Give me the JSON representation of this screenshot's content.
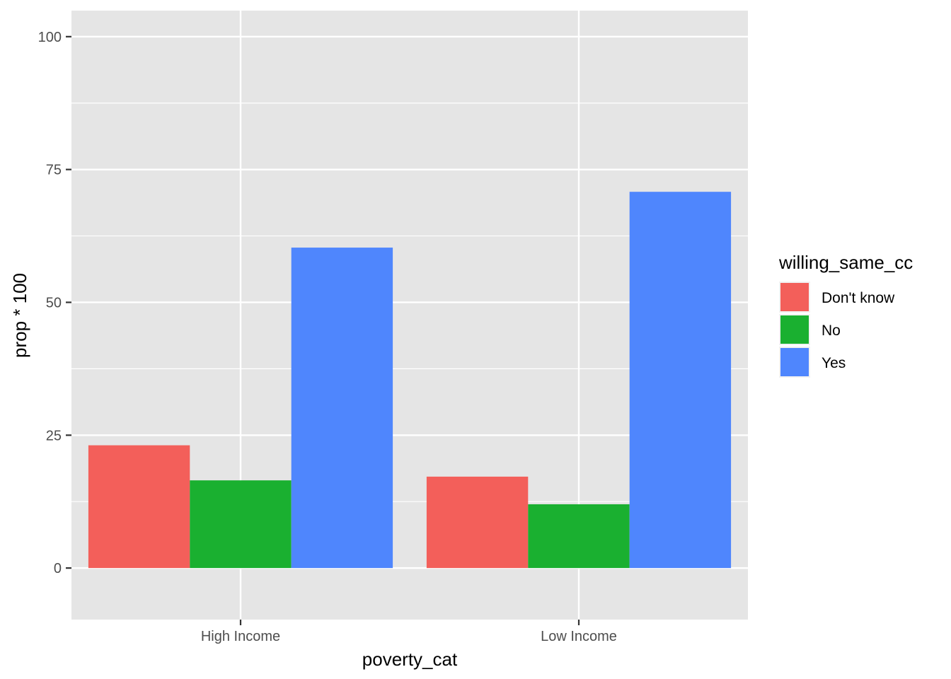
{
  "chart_data": {
    "type": "bar",
    "title": "",
    "xlabel": "poverty_cat",
    "ylabel": "prop * 100",
    "ylim": [
      -9.7,
      104.9
    ],
    "yticks": [
      0,
      25,
      50,
      75,
      100
    ],
    "yticks_labels": [
      "0",
      "25",
      "50",
      "75",
      "100"
    ],
    "grid": true,
    "categories": [
      "High Income",
      "Low Income"
    ],
    "series": [
      {
        "name": "Don't know",
        "color": "#F8766D",
        "values": [
          23.1,
          17.2
        ]
      },
      {
        "name": "No",
        "color": "#00BA38",
        "values": [
          16.5,
          12.0
        ]
      },
      {
        "name": "Yes",
        "color": "#619CFF",
        "values": [
          60.3,
          70.8
        ]
      }
    ],
    "legend": {
      "title": "willing_same_cc",
      "position": "right"
    },
    "panel_background": "#EBEBEB",
    "grid_color": "#FFFFFF",
    "bar_colors": {
      "Don't know": "#F35F5A",
      "No": "#1AB030",
      "Yes": "#4F86FD"
    }
  }
}
